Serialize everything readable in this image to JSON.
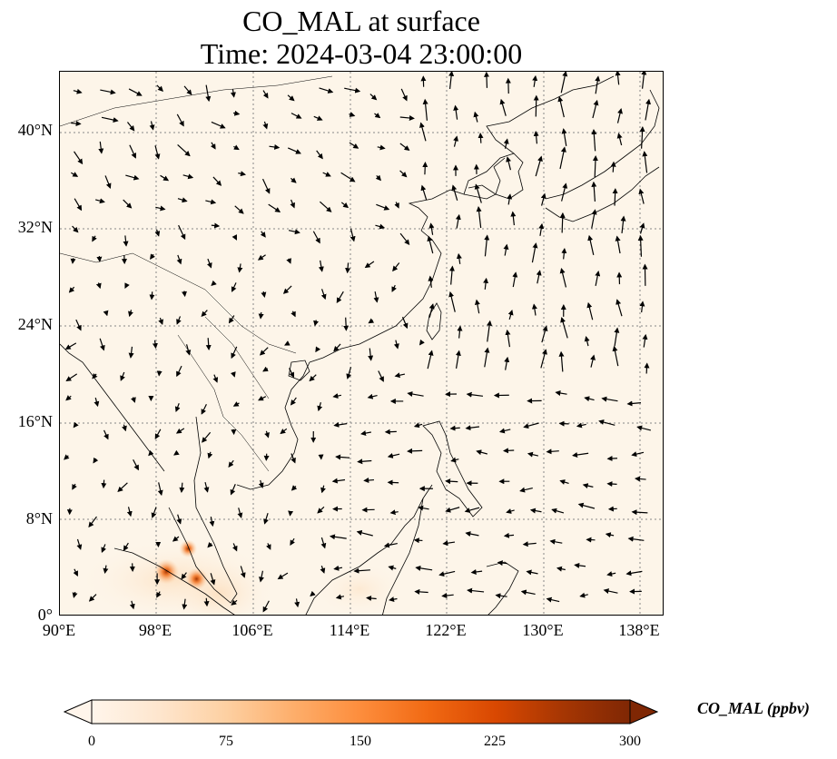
{
  "title": {
    "line1": "CO_MAL at surface",
    "line2": "Time: 2024-03-04 23:00:00"
  },
  "axes": {
    "lon_labels": [
      "90°E",
      "98°E",
      "106°E",
      "114°E",
      "122°E",
      "130°E",
      "138°E"
    ],
    "lat_labels": [
      "0°",
      "8°N",
      "16°N",
      "24°N",
      "32°N",
      "40°N"
    ],
    "lon_range": [
      90,
      140
    ],
    "lat_range": [
      0,
      45
    ]
  },
  "colorbar": {
    "label": "CO_MAL (ppbv)",
    "ticks": [
      "0",
      "75",
      "150",
      "225",
      "300"
    ],
    "min": 0,
    "max": 300,
    "colors": [
      "#fff5eb",
      "#fee6ce",
      "#fdd0a2",
      "#fdae6b",
      "#fd8d3c",
      "#f16913",
      "#d94801",
      "#a63603",
      "#7f2704"
    ]
  },
  "concentration_hotspots": [
    {
      "lon": 98.8,
      "lat": 3.7,
      "value": 250
    },
    {
      "lon": 101.3,
      "lat": 3.1,
      "value": 210
    },
    {
      "lon": 100.6,
      "lat": 5.6,
      "value": 150
    }
  ],
  "map_style": {
    "background": "#fdf5e9",
    "gridlines": "dotted",
    "grid_color": "#888888",
    "coastline_color": "#000000",
    "vector_color": "#000000"
  }
}
